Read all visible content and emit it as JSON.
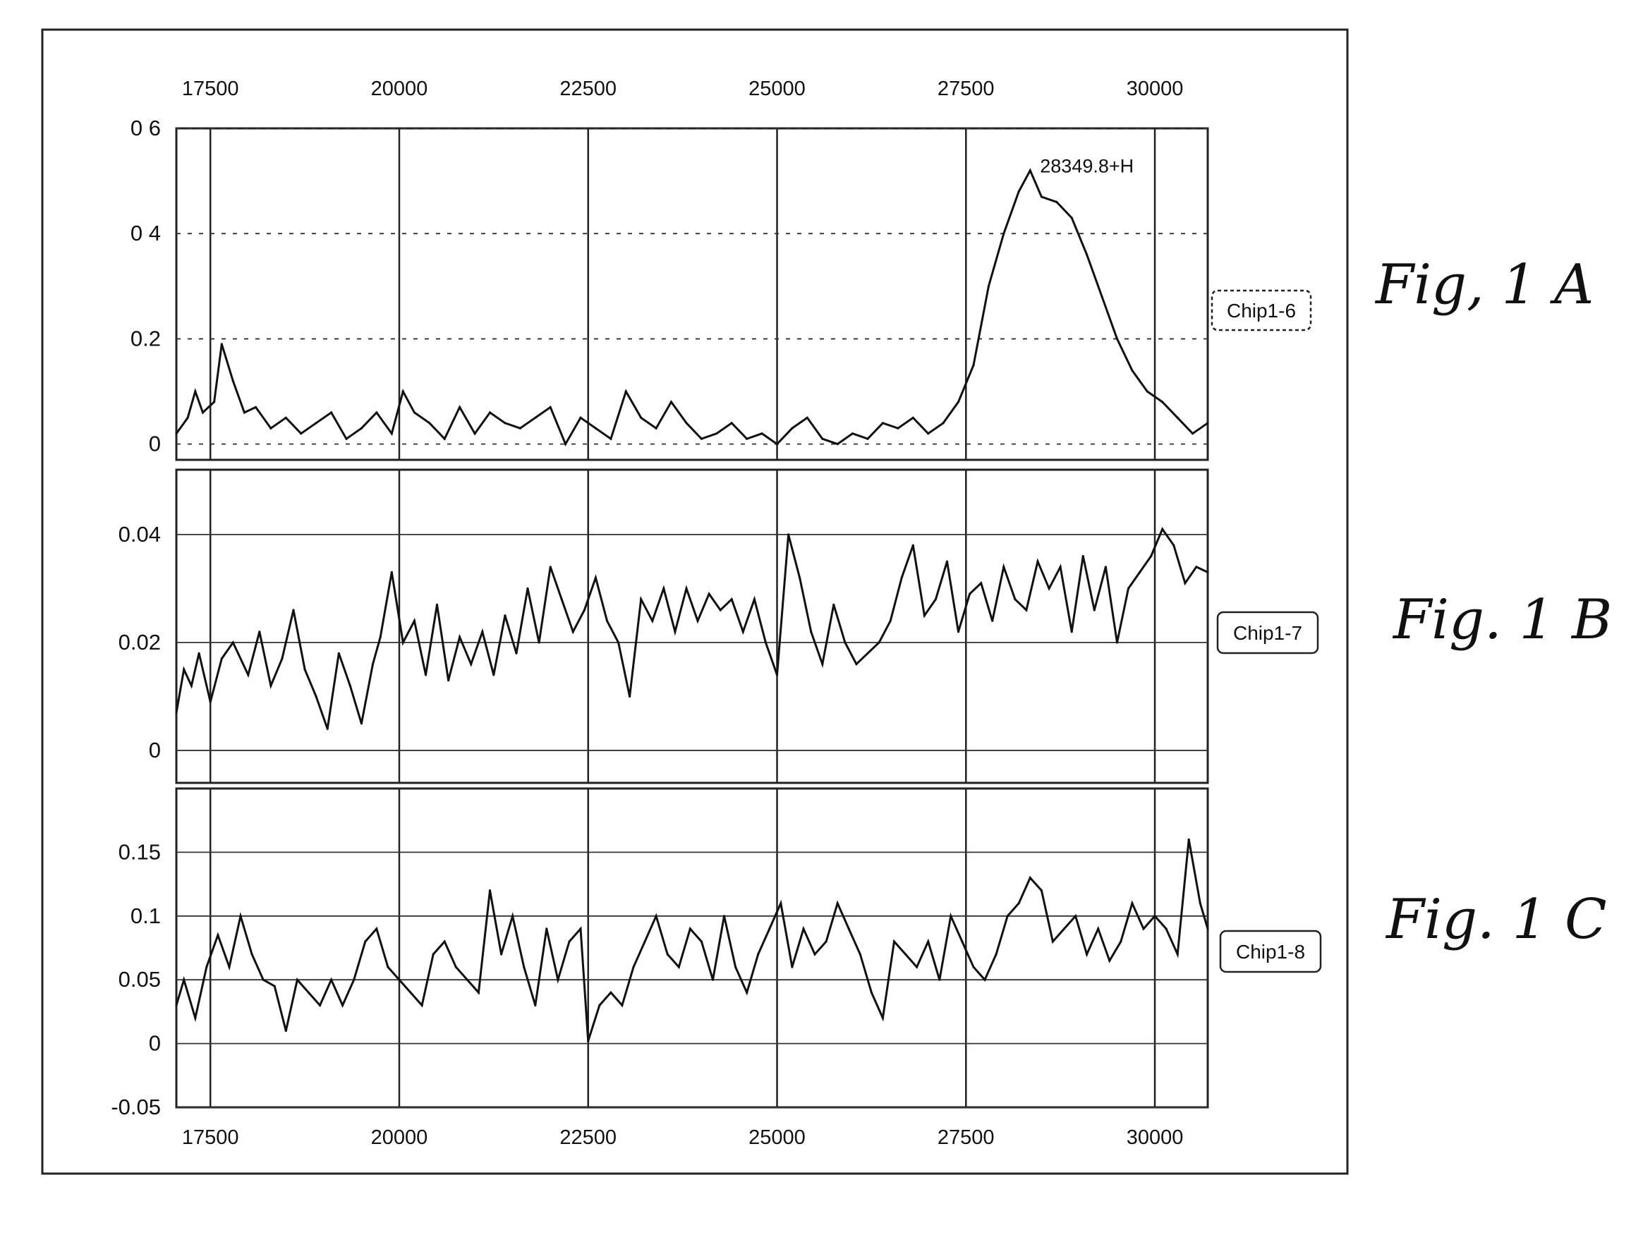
{
  "chart_data": [
    {
      "type": "line",
      "figure_label": "Fig, 1 A",
      "legend": "Chip1-6",
      "annotation": "28349.8+H",
      "x_ticks": [
        "17500",
        "20000",
        "22500",
        "25000",
        "27500",
        "30000"
      ],
      "y_ticks": [
        "0",
        "0.2",
        "0 4",
        "0 6"
      ],
      "ylim": [
        -0.03,
        0.6
      ],
      "xlim": [
        17050,
        30700
      ],
      "grid": true,
      "series": [
        {
          "x": [
            17050,
            17200,
            17300,
            17400,
            17550,
            17650,
            17800,
            17950,
            18100,
            18300,
            18500,
            18700,
            18900,
            19100,
            19300,
            19500,
            19700,
            19900,
            20050,
            20200,
            20400,
            20600,
            20800,
            21000,
            21200,
            21400,
            21600,
            21800,
            22000,
            22200,
            22400,
            22600,
            22800,
            23000,
            23200,
            23400,
            23600,
            23800,
            24000,
            24200,
            24400,
            24600,
            24800,
            25000,
            25200,
            25400,
            25600,
            25800,
            26000,
            26200,
            26400,
            26600,
            26800,
            27000,
            27200,
            27400,
            27600,
            27800,
            28000,
            28200,
            28349.8,
            28500,
            28700,
            28900,
            29100,
            29300,
            29500,
            29700,
            29900,
            30100,
            30300,
            30500,
            30700
          ],
          "y": [
            0.02,
            0.05,
            0.1,
            0.06,
            0.08,
            0.19,
            0.12,
            0.06,
            0.07,
            0.03,
            0.05,
            0.02,
            0.04,
            0.06,
            0.01,
            0.03,
            0.06,
            0.02,
            0.1,
            0.06,
            0.04,
            0.01,
            0.07,
            0.02,
            0.06,
            0.04,
            0.03,
            0.05,
            0.07,
            0.0,
            0.05,
            0.03,
            0.01,
            0.1,
            0.05,
            0.03,
            0.08,
            0.04,
            0.01,
            0.02,
            0.04,
            0.01,
            0.02,
            0.0,
            0.03,
            0.05,
            0.01,
            0.0,
            0.02,
            0.01,
            0.04,
            0.03,
            0.05,
            0.02,
            0.04,
            0.08,
            0.15,
            0.3,
            0.4,
            0.48,
            0.52,
            0.47,
            0.46,
            0.43,
            0.36,
            0.28,
            0.2,
            0.14,
            0.1,
            0.08,
            0.05,
            0.02,
            0.04
          ]
        }
      ]
    },
    {
      "type": "line",
      "figure_label": "Fig. 1 B",
      "legend": "Chip1-7",
      "x_ticks": [],
      "y_ticks": [
        "0",
        "0.02",
        "0.04"
      ],
      "ylim": [
        -0.006,
        0.052
      ],
      "xlim": [
        17050,
        30700
      ],
      "grid": true,
      "series": [
        {
          "x": [
            17050,
            17150,
            17250,
            17350,
            17500,
            17650,
            17800,
            18000,
            18150,
            18300,
            18450,
            18600,
            18750,
            18900,
            19050,
            19200,
            19350,
            19500,
            19650,
            19750,
            19900,
            20050,
            20200,
            20350,
            20500,
            20650,
            20800,
            20950,
            21100,
            21250,
            21400,
            21550,
            21700,
            21850,
            22000,
            22150,
            22300,
            22450,
            22600,
            22750,
            22900,
            23050,
            23200,
            23350,
            23500,
            23650,
            23800,
            23950,
            24100,
            24250,
            24400,
            24550,
            24700,
            24850,
            25000,
            25150,
            25300,
            25450,
            25600,
            25750,
            25900,
            26050,
            26200,
            26350,
            26500,
            26650,
            26800,
            26950,
            27100,
            27250,
            27400,
            27550,
            27700,
            27850,
            28000,
            28150,
            28300,
            28450,
            28600,
            28750,
            28900,
            29050,
            29200,
            29350,
            29500,
            29650,
            29800,
            29950,
            30100,
            30250,
            30400,
            30550,
            30700
          ],
          "y": [
            0.007,
            0.015,
            0.012,
            0.018,
            0.009,
            0.017,
            0.02,
            0.014,
            0.022,
            0.012,
            0.017,
            0.026,
            0.015,
            0.01,
            0.004,
            0.018,
            0.012,
            0.005,
            0.016,
            0.021,
            0.033,
            0.02,
            0.024,
            0.014,
            0.027,
            0.013,
            0.021,
            0.016,
            0.022,
            0.014,
            0.025,
            0.018,
            0.03,
            0.02,
            0.034,
            0.028,
            0.022,
            0.026,
            0.032,
            0.024,
            0.02,
            0.01,
            0.028,
            0.024,
            0.03,
            0.022,
            0.03,
            0.024,
            0.029,
            0.026,
            0.028,
            0.022,
            0.028,
            0.02,
            0.014,
            0.04,
            0.032,
            0.022,
            0.016,
            0.027,
            0.02,
            0.016,
            0.018,
            0.02,
            0.024,
            0.032,
            0.038,
            0.025,
            0.028,
            0.035,
            0.022,
            0.029,
            0.031,
            0.024,
            0.034,
            0.028,
            0.026,
            0.035,
            0.03,
            0.034,
            0.022,
            0.036,
            0.026,
            0.034,
            0.02,
            0.03,
            0.033,
            0.036,
            0.041,
            0.038,
            0.031,
            0.034,
            0.033
          ]
        }
      ]
    },
    {
      "type": "line",
      "figure_label": "Fig. 1 C",
      "legend": "Chip1-8",
      "x_ticks": [
        "17500",
        "20000",
        "22500",
        "25000",
        "27500",
        "30000"
      ],
      "y_ticks": [
        "-0.05",
        "0",
        "0.05",
        "0.1",
        "0.15"
      ],
      "ylim": [
        -0.05,
        0.2
      ],
      "xlim": [
        17050,
        30700
      ],
      "grid": true,
      "series": [
        {
          "x": [
            17050,
            17150,
            17300,
            17450,
            17600,
            17750,
            17900,
            18050,
            18200,
            18350,
            18500,
            18650,
            18800,
            18950,
            19100,
            19250,
            19400,
            19550,
            19700,
            19850,
            20000,
            20150,
            20300,
            20450,
            20600,
            20750,
            20900,
            21050,
            21200,
            21350,
            21500,
            21650,
            21800,
            21950,
            22100,
            22250,
            22400,
            22500,
            22650,
            22800,
            22950,
            23100,
            23250,
            23400,
            23550,
            23700,
            23850,
            24000,
            24150,
            24300,
            24450,
            24600,
            24750,
            24900,
            25050,
            25200,
            25350,
            25500,
            25650,
            25800,
            25950,
            26100,
            26250,
            26400,
            26550,
            26700,
            26850,
            27000,
            27150,
            27300,
            27450,
            27600,
            27750,
            27900,
            28050,
            28200,
            28350,
            28500,
            28650,
            28800,
            28950,
            29100,
            29250,
            29400,
            29550,
            29700,
            29850,
            30000,
            30150,
            30300,
            30450,
            30600,
            30700
          ],
          "y": [
            0.03,
            0.05,
            0.02,
            0.06,
            0.085,
            0.06,
            0.1,
            0.07,
            0.05,
            0.045,
            0.01,
            0.05,
            0.04,
            0.03,
            0.05,
            0.03,
            0.05,
            0.08,
            0.09,
            0.06,
            0.05,
            0.04,
            0.03,
            0.07,
            0.08,
            0.06,
            0.05,
            0.04,
            0.12,
            0.07,
            0.1,
            0.06,
            0.03,
            0.09,
            0.05,
            0.08,
            0.09,
            0.002,
            0.03,
            0.04,
            0.03,
            0.06,
            0.08,
            0.1,
            0.07,
            0.06,
            0.09,
            0.08,
            0.05,
            0.1,
            0.06,
            0.04,
            0.07,
            0.09,
            0.11,
            0.06,
            0.09,
            0.07,
            0.08,
            0.11,
            0.09,
            0.07,
            0.04,
            0.02,
            0.08,
            0.07,
            0.06,
            0.08,
            0.05,
            0.1,
            0.08,
            0.06,
            0.05,
            0.07,
            0.1,
            0.11,
            0.13,
            0.12,
            0.08,
            0.09,
            0.1,
            0.07,
            0.09,
            0.065,
            0.08,
            0.11,
            0.09,
            0.1,
            0.09,
            0.07,
            0.16,
            0.11,
            0.09
          ]
        }
      ]
    }
  ]
}
